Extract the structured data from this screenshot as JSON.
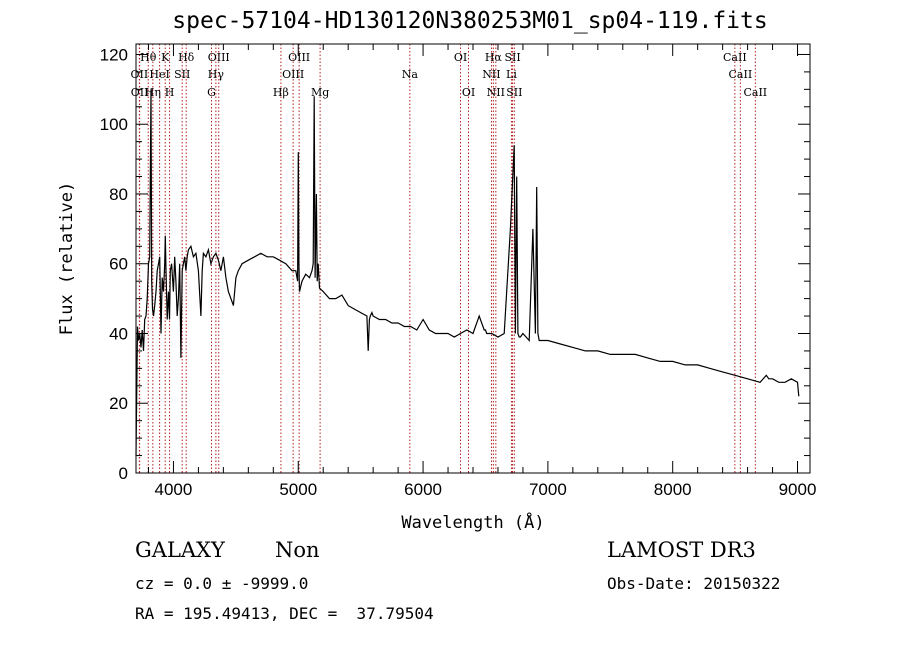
{
  "chart_data": {
    "type": "line",
    "title": "spec-57104-HD130120N380253M01_sp04-119.fits",
    "xlabel": "Wavelength (Å)",
    "ylabel": "Flux (relative)",
    "xlim": [
      3700,
      9100
    ],
    "ylim": [
      0,
      123
    ],
    "xticks": [
      4000,
      5000,
      6000,
      7000,
      8000,
      9000
    ],
    "yticks": [
      0,
      20,
      40,
      60,
      80,
      100,
      120
    ],
    "series": [
      {
        "name": "spectrum",
        "x": [
          3700,
          3712,
          3720,
          3730,
          3740,
          3750,
          3760,
          3770,
          3780,
          3790,
          3800,
          3810,
          3820,
          3826,
          3832,
          3840,
          3850,
          3860,
          3870,
          3880,
          3890,
          3900,
          3910,
          3920,
          3930,
          3935,
          3940,
          3950,
          3960,
          3968,
          3975,
          3985,
          4000,
          4010,
          4020,
          4030,
          4040,
          4050,
          4060,
          4070,
          4080,
          4090,
          4100,
          4110,
          4120,
          4140,
          4160,
          4180,
          4200,
          4220,
          4230,
          4240,
          4260,
          4280,
          4300,
          4320,
          4340,
          4360,
          4380,
          4400,
          4420,
          4440,
          4460,
          4480,
          4500,
          4520,
          4550,
          4600,
          4650,
          4700,
          4750,
          4800,
          4850,
          4900,
          4950,
          4980,
          4995,
          5000,
          5005,
          5010,
          5030,
          5060,
          5090,
          5110,
          5120,
          5128,
          5135,
          5145,
          5152,
          5160,
          5170,
          5200,
          5250,
          5300,
          5350,
          5400,
          5450,
          5500,
          5550,
          5560,
          5570,
          5577,
          5590,
          5600,
          5650,
          5700,
          5750,
          5800,
          5850,
          5900,
          5950,
          6000,
          6050,
          6100,
          6150,
          6200,
          6250,
          6300,
          6350,
          6400,
          6450,
          6490,
          6500,
          6510,
          6550,
          6600,
          6650,
          6700,
          6730,
          6740,
          6750,
          6760,
          6770,
          6780,
          6800,
          6850,
          6880,
          6900,
          6910,
          6920,
          6930,
          6940,
          6950,
          7000,
          7100,
          7200,
          7300,
          7400,
          7500,
          7600,
          7700,
          7800,
          7900,
          8000,
          8100,
          8200,
          8300,
          8400,
          8500,
          8600,
          8700,
          8750,
          8770,
          8800,
          8850,
          8900,
          8950,
          9000,
          9010
        ],
        "values": [
          5,
          42,
          38,
          40,
          36,
          41,
          35,
          44,
          45,
          50,
          60,
          62,
          110,
          55,
          47,
          45,
          48,
          52,
          58,
          60,
          62,
          40,
          56,
          52,
          60,
          68,
          58,
          44,
          52,
          44,
          58,
          60,
          52,
          62,
          55,
          45,
          50,
          60,
          33,
          58,
          60,
          62,
          58,
          62,
          64,
          65,
          62,
          63,
          58,
          45,
          58,
          63,
          62,
          64,
          60,
          62,
          63,
          61,
          58,
          62,
          56,
          52,
          50,
          48,
          56,
          58,
          60,
          61,
          62,
          63,
          62,
          62,
          61,
          60,
          58,
          58,
          55,
          92,
          60,
          52,
          55,
          57,
          56,
          58,
          60,
          108,
          56,
          80,
          55,
          60,
          53,
          52,
          50,
          50,
          51,
          48,
          47,
          46,
          45,
          35,
          44,
          45,
          46,
          45,
          44,
          44,
          43,
          43,
          42,
          42,
          41,
          44,
          41,
          40,
          40,
          40,
          39,
          40,
          41,
          40,
          45,
          41,
          41,
          40,
          40,
          39,
          40,
          70,
          94,
          40,
          85,
          40,
          39,
          39,
          40,
          38,
          70,
          40,
          82,
          40,
          38,
          38,
          38,
          38,
          37,
          36,
          35,
          35,
          34,
          34,
          34,
          33,
          32,
          32,
          31,
          31,
          30,
          29,
          28,
          27,
          26,
          28,
          27,
          27,
          26,
          26,
          27,
          26,
          22
        ]
      }
    ],
    "line_markers": [
      {
        "label": "OII",
        "wavelength": 3727,
        "row": 2
      },
      {
        "label": "OII",
        "wavelength": 3729,
        "row": 3
      },
      {
        "label": "Hθ",
        "wavelength": 3798,
        "row": 1
      },
      {
        "label": "Hη",
        "wavelength": 3835,
        "row": 3
      },
      {
        "label": "HeI",
        "wavelength": 3889,
        "row": 2
      },
      {
        "label": "K",
        "wavelength": 3934,
        "row": 1
      },
      {
        "label": "H",
        "wavelength": 3969,
        "row": 3
      },
      {
        "label": "Hδ",
        "wavelength": 4102,
        "row": 1
      },
      {
        "label": "SII",
        "wavelength": 4070,
        "row": 2
      },
      {
        "label": "OIII",
        "wavelength": 4363,
        "row": 1
      },
      {
        "label": "Hγ",
        "wavelength": 4340,
        "row": 2
      },
      {
        "label": "G",
        "wavelength": 4305,
        "row": 3
      },
      {
        "label": "Hβ",
        "wavelength": 4861,
        "row": 3
      },
      {
        "label": "OIII",
        "wavelength": 5007,
        "row": 1
      },
      {
        "label": "OIII",
        "wavelength": 4959,
        "row": 2
      },
      {
        "label": "Mg",
        "wavelength": 5175,
        "row": 3
      },
      {
        "label": "Na",
        "wavelength": 5894,
        "row": 2
      },
      {
        "label": "OI",
        "wavelength": 6300,
        "row": 1
      },
      {
        "label": "OI",
        "wavelength": 6364,
        "row": 3
      },
      {
        "label": "Hα",
        "wavelength": 6563,
        "row": 1
      },
      {
        "label": "NII",
        "wavelength": 6548,
        "row": 2
      },
      {
        "label": "NII",
        "wavelength": 6583,
        "row": 3
      },
      {
        "label": "SII",
        "wavelength": 6717,
        "row": 1
      },
      {
        "label": "Li",
        "wavelength": 6708,
        "row": 2
      },
      {
        "label": "SII",
        "wavelength": 6731,
        "row": 3
      },
      {
        "label": "CaII",
        "wavelength": 8498,
        "row": 1
      },
      {
        "label": "CaII",
        "wavelength": 8542,
        "row": 2
      },
      {
        "label": "CaII",
        "wavelength": 8662,
        "row": 3
      }
    ]
  },
  "info": {
    "class": "GALAXY",
    "subclass": "Non",
    "survey": "LAMOST DR3",
    "cz": "cz = 0.0 ± -9999.0",
    "obs_date": "Obs-Date: 20150322",
    "radec": "RA = 195.49413, DEC =  37.79504"
  }
}
